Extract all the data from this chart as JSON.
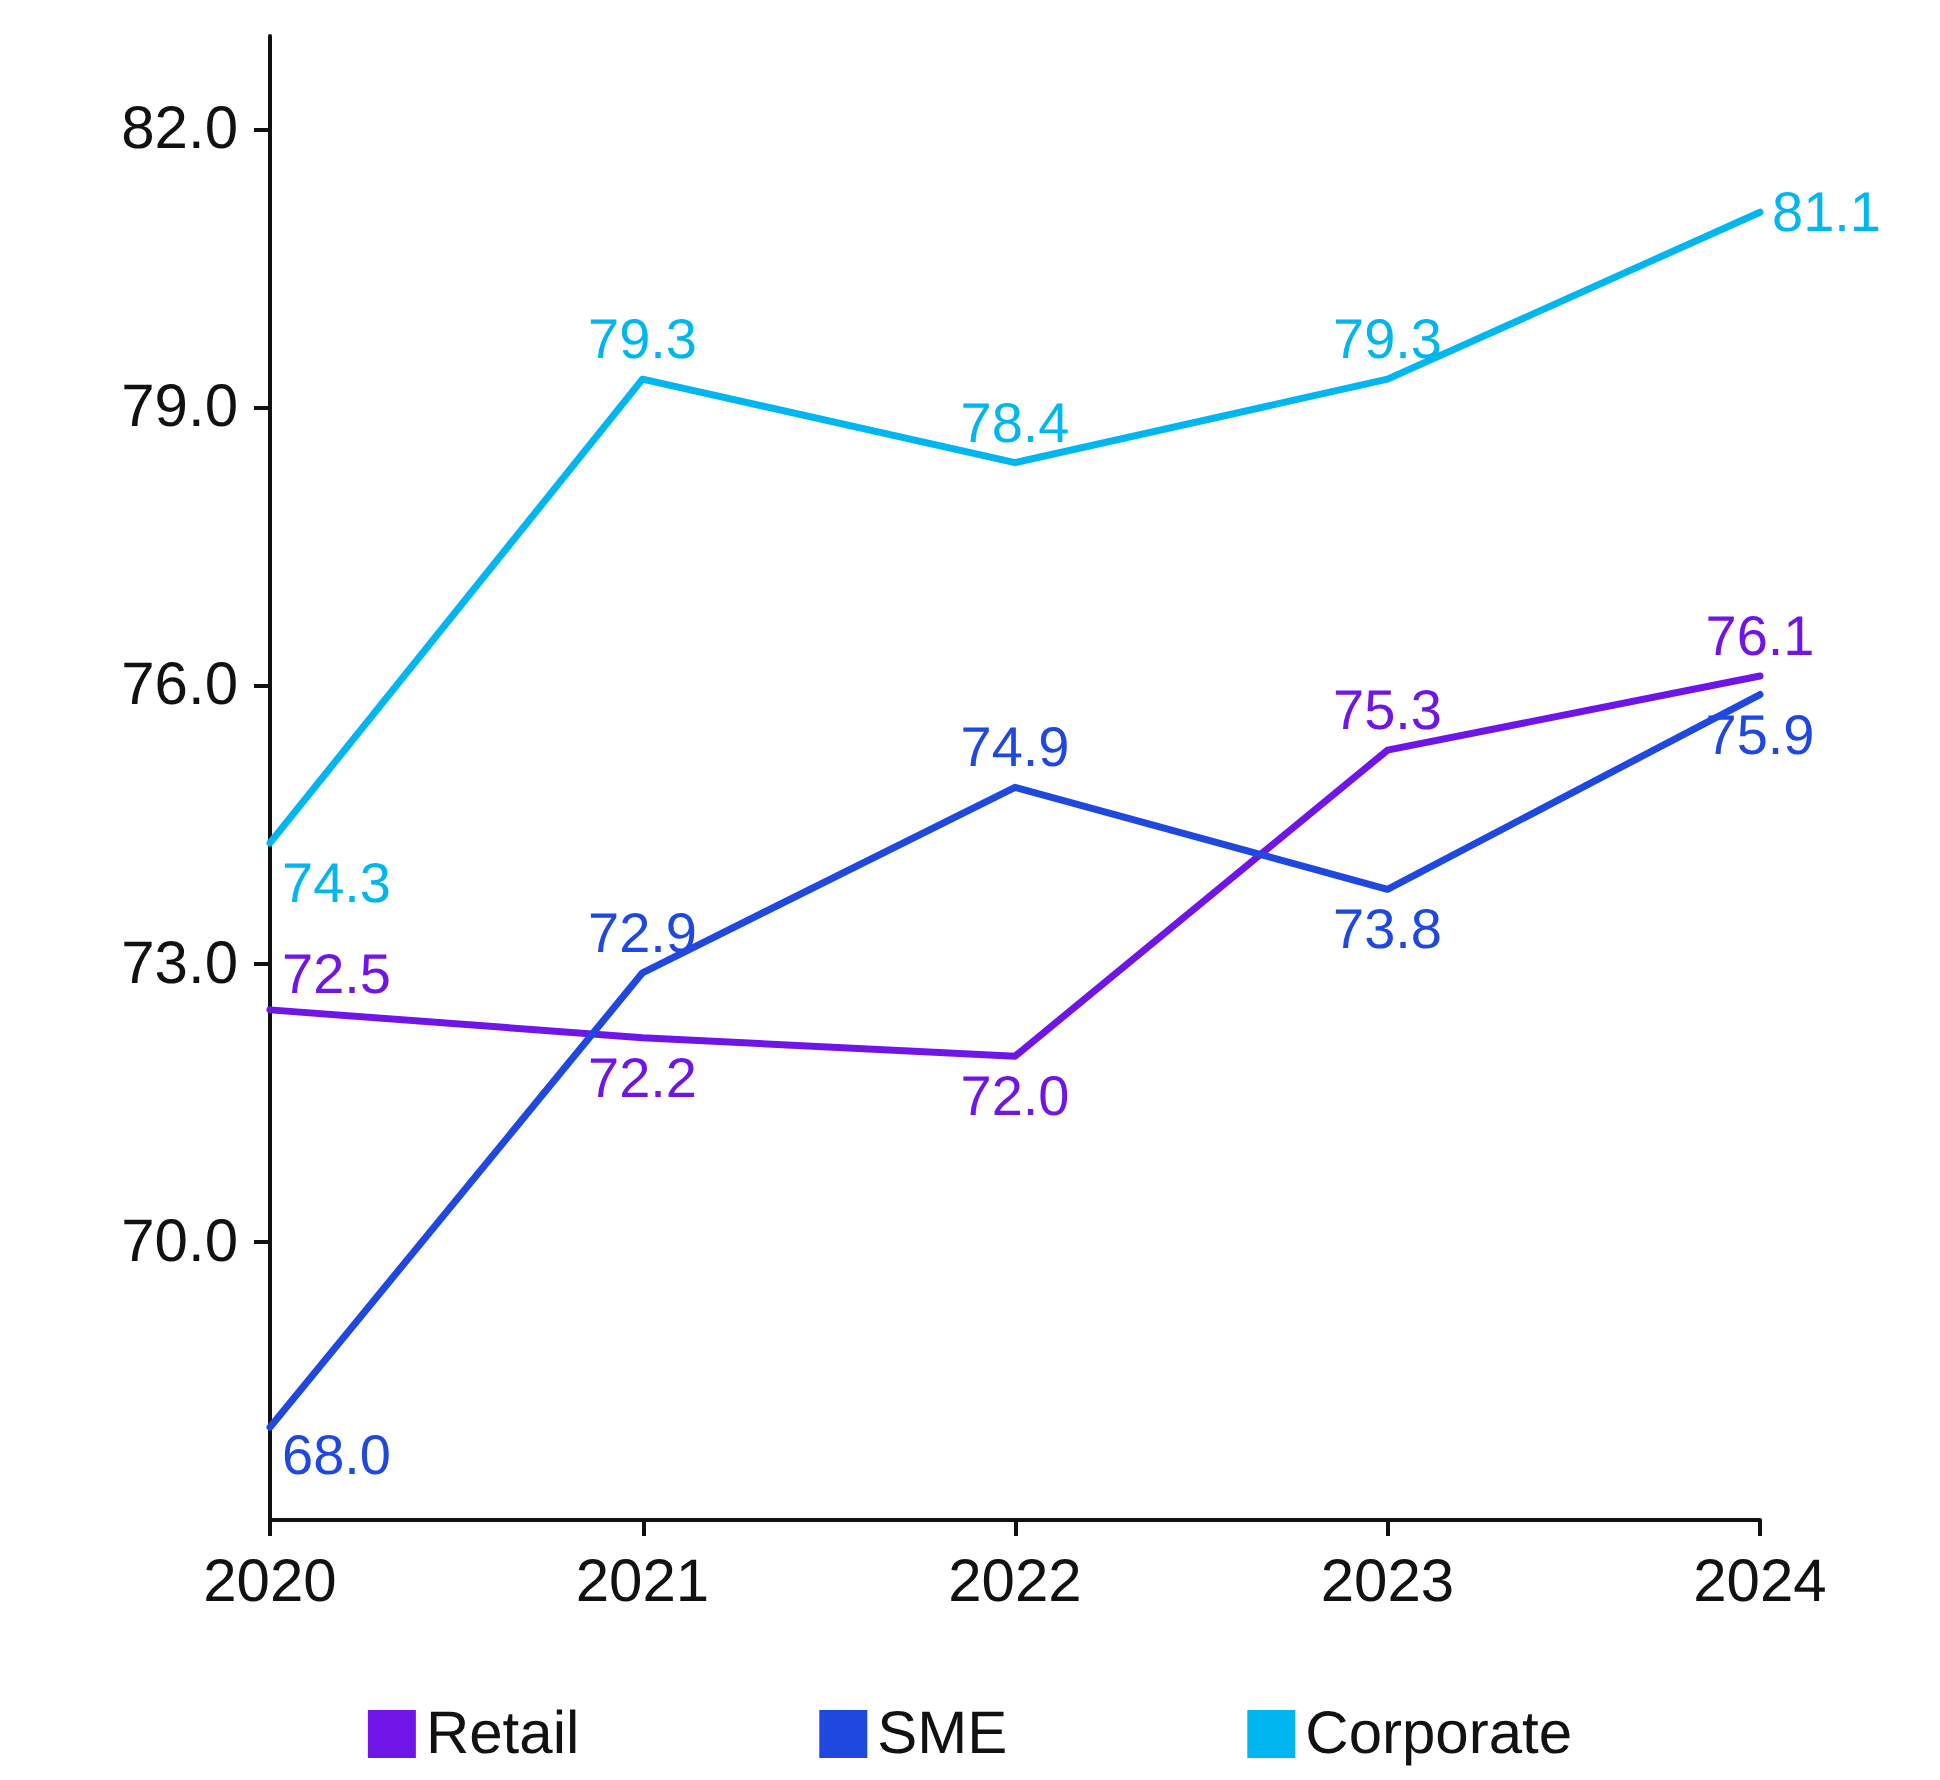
{
  "chart_data": {
    "type": "line",
    "categories": [
      "2020",
      "2021",
      "2022",
      "2023",
      "2024"
    ],
    "series": [
      {
        "name": "Retail",
        "color": "#7015e8",
        "values": [
          72.5,
          72.2,
          72.0,
          75.3,
          76.1
        ],
        "value_labels": [
          "72.5",
          "72.2",
          "72.0",
          "75.3",
          "76.1"
        ]
      },
      {
        "name": "SME",
        "color": "#1f48e0",
        "values": [
          68.0,
          72.9,
          74.9,
          73.8,
          75.9
        ],
        "value_labels": [
          "68.0",
          "72.9",
          "74.9",
          "73.8",
          "75.9"
        ]
      },
      {
        "name": "Corporate",
        "color": "#00b6f0",
        "values": [
          74.3,
          79.3,
          78.4,
          79.3,
          81.1
        ],
        "value_labels": [
          "74.3",
          "79.3",
          "78.4",
          "79.3",
          "81.1"
        ]
      }
    ],
    "ylim": [
      67,
      83
    ],
    "yticks": [
      {
        "value": 70,
        "label": "70.0"
      },
      {
        "value": 73,
        "label": "73.0"
      },
      {
        "value": 76,
        "label": "76.0"
      },
      {
        "value": 79,
        "label": "79.0"
      },
      {
        "value": 82,
        "label": "82.0"
      }
    ],
    "grid": false,
    "legend": "bottom",
    "marker": "none",
    "line_style": "solid"
  }
}
